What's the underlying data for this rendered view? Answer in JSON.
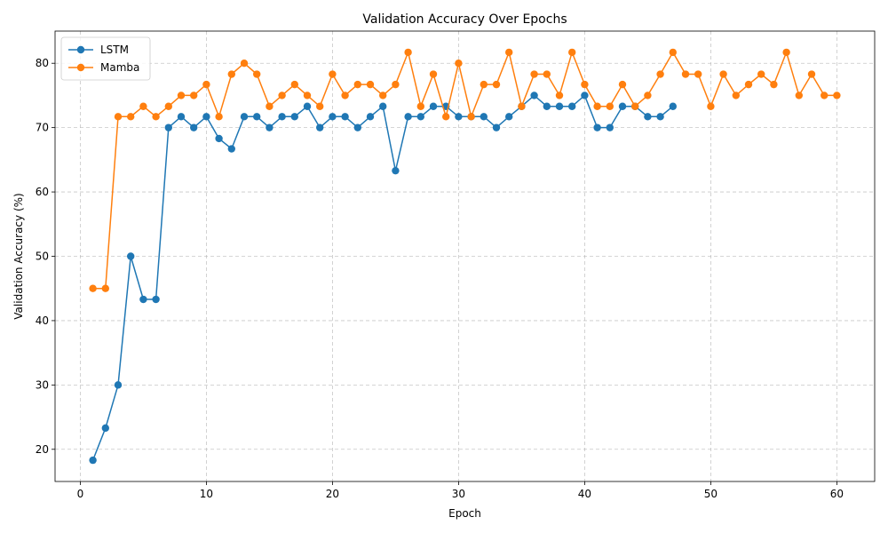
{
  "chart_data": {
    "type": "line",
    "title": "Validation Accuracy Over Epochs",
    "xlabel": "Epoch",
    "ylabel": "Validation Accuracy (%)",
    "xlim": [
      -2,
      63
    ],
    "ylim": [
      15,
      85
    ],
    "xticks": [
      0,
      10,
      20,
      30,
      40,
      50,
      60
    ],
    "yticks": [
      20,
      30,
      40,
      50,
      60,
      70,
      80
    ],
    "grid": true,
    "legend_position": "top-left",
    "series": [
      {
        "name": "LSTM",
        "color": "#1f77b4",
        "x": [
          1,
          2,
          3,
          4,
          5,
          6,
          7,
          8,
          9,
          10,
          11,
          12,
          13,
          14,
          15,
          16,
          17,
          18,
          19,
          20,
          21,
          22,
          23,
          24,
          25,
          26,
          27,
          28,
          29,
          30,
          31,
          32,
          33,
          34,
          35,
          36,
          37,
          38,
          39,
          40,
          41,
          42,
          43,
          44,
          45,
          46,
          47
        ],
        "values": [
          18.3,
          23.3,
          30.0,
          50.0,
          43.3,
          43.3,
          70.0,
          71.7,
          70.0,
          71.7,
          68.3,
          66.7,
          71.7,
          71.7,
          70.0,
          71.7,
          71.7,
          73.3,
          70.0,
          71.7,
          71.7,
          70.0,
          71.7,
          73.3,
          63.3,
          71.7,
          71.7,
          73.3,
          73.3,
          71.7,
          71.7,
          71.7,
          70.0,
          71.7,
          73.3,
          75.0,
          73.3,
          73.3,
          73.3,
          75.0,
          70.0,
          70.0,
          73.3,
          73.3,
          71.7,
          71.7,
          73.3
        ]
      },
      {
        "name": "Mamba",
        "color": "#ff7f0e",
        "x": [
          1,
          2,
          3,
          4,
          5,
          6,
          7,
          8,
          9,
          10,
          11,
          12,
          13,
          14,
          15,
          16,
          17,
          18,
          19,
          20,
          21,
          22,
          23,
          24,
          25,
          26,
          27,
          28,
          29,
          30,
          31,
          32,
          33,
          34,
          35,
          36,
          37,
          38,
          39,
          40,
          41,
          42,
          43,
          44,
          45,
          46,
          47,
          48,
          49,
          50,
          51,
          52,
          53,
          54,
          55,
          56,
          57,
          58,
          59,
          60
        ],
        "values": [
          45.0,
          45.0,
          71.7,
          71.7,
          73.3,
          71.7,
          73.3,
          75.0,
          75.0,
          76.7,
          71.7,
          78.3,
          80.0,
          78.3,
          73.3,
          75.0,
          76.7,
          75.0,
          73.3,
          78.3,
          75.0,
          76.7,
          76.7,
          75.0,
          76.7,
          81.7,
          73.3,
          78.3,
          71.7,
          80.0,
          71.7,
          76.7,
          76.7,
          81.7,
          73.3,
          78.3,
          78.3,
          75.0,
          81.7,
          76.7,
          73.3,
          73.3,
          76.7,
          73.3,
          75.0,
          78.3,
          81.7,
          78.3,
          78.3,
          73.3,
          78.3,
          75.0,
          76.7,
          78.3,
          76.7,
          81.7,
          75.0,
          78.3,
          75.0,
          75.0
        ]
      }
    ]
  }
}
